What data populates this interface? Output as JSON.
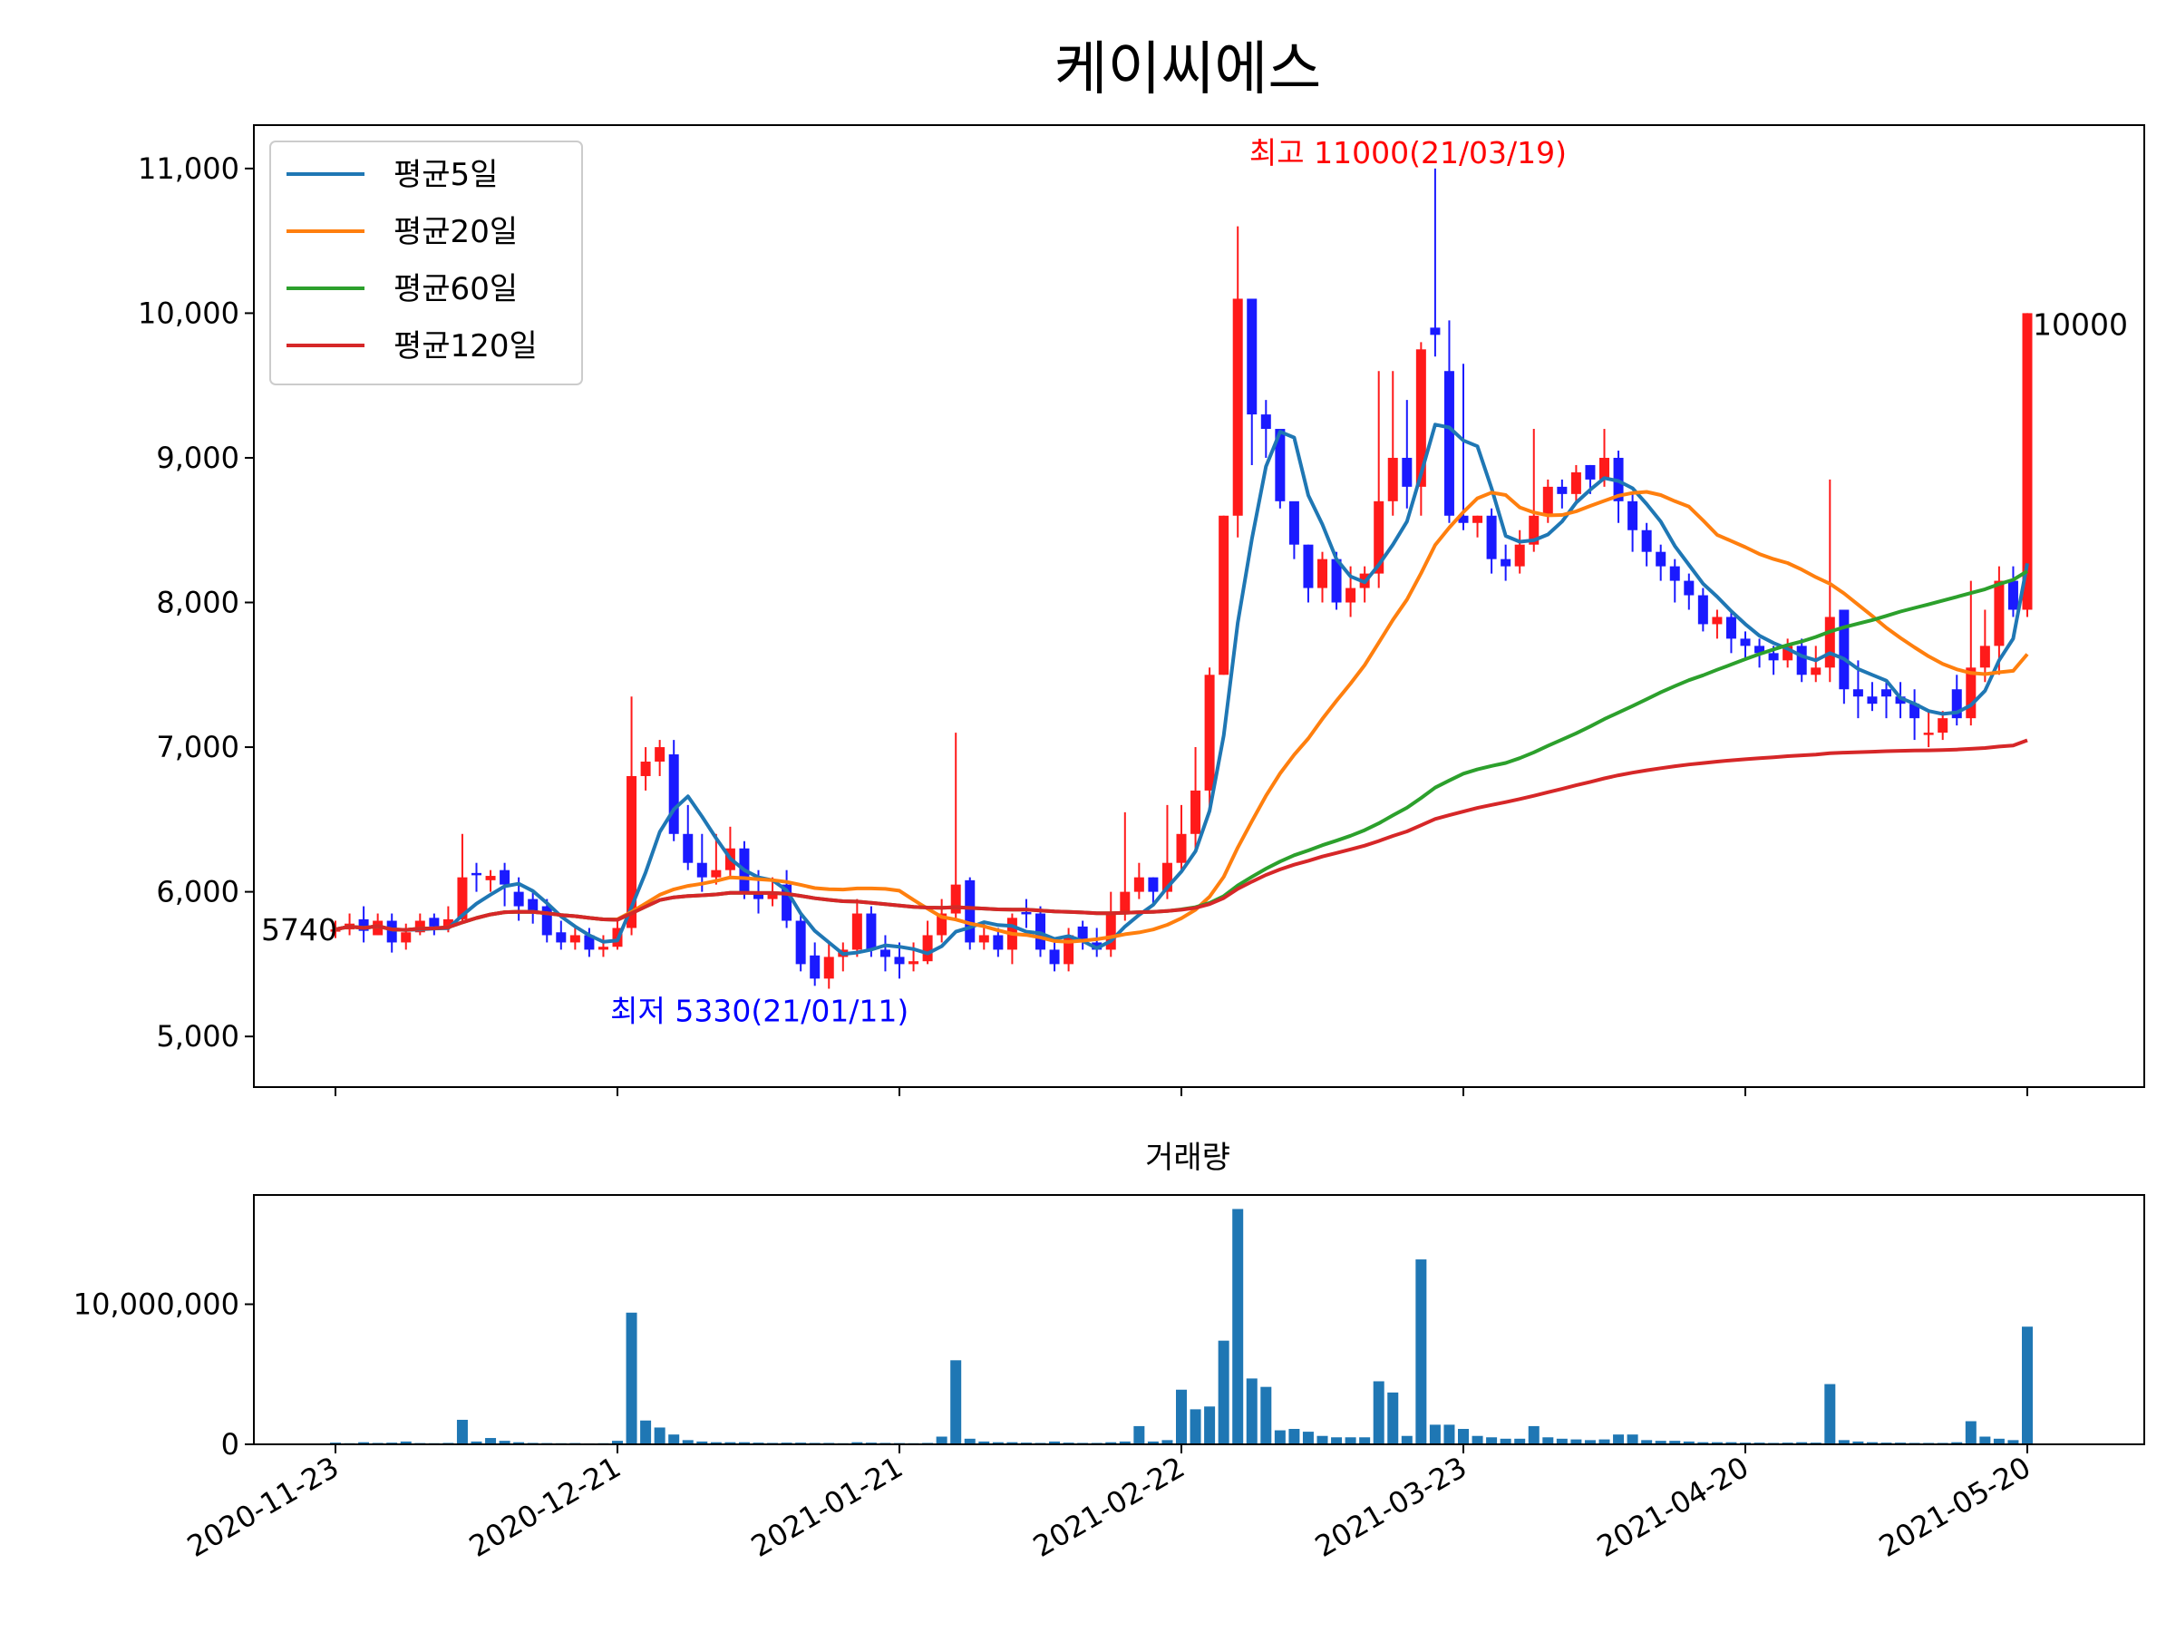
{
  "chart_data": {
    "type": "candlestick",
    "title": "케이씨에스",
    "price_axis": {
      "ylim": [
        4650,
        11300
      ],
      "ticks": [
        5000,
        6000,
        7000,
        8000,
        9000,
        10000,
        11000
      ],
      "tick_labels": [
        "5,000",
        "6,000",
        "7,000",
        "8,000",
        "9,000",
        "10,000",
        "11,000"
      ]
    },
    "volume_axis": {
      "title": "거래량",
      "ylim": [
        0,
        17800000
      ],
      "ticks": [
        0,
        10000000
      ],
      "tick_labels": [
        "0",
        "10,000,000"
      ]
    },
    "x_tick_labels": [
      "2020-11-23",
      "2020-12-21",
      "2021-01-21",
      "2021-02-22",
      "2021-03-23",
      "2021-04-20",
      "2021-05-20"
    ],
    "x_tick_index": [
      0,
      20,
      40,
      60,
      80,
      100,
      120
    ],
    "colors": {
      "up": "#ff1a1a",
      "down": "#1a1aff",
      "volume": "#1f77b4"
    },
    "legend": {
      "placement": "upper-left",
      "entries": [
        {
          "name": "평균5일",
          "color": "#1f77b4"
        },
        {
          "name": "평균20일",
          "color": "#ff7f0e"
        },
        {
          "name": "평균60일",
          "color": "#2ca02c"
        },
        {
          "name": "평균120일",
          "color": "#d62728"
        }
      ]
    },
    "annotations": {
      "high": {
        "text": "최고 11000(21/03/19)",
        "index": 78,
        "value": 11000,
        "color": "#ff0000"
      },
      "low": {
        "text": "최저 5330(21/01/11)",
        "index": 33,
        "value": 5330,
        "color": "#0000ff"
      },
      "first": {
        "text": "5740",
        "value": 5740
      },
      "last": {
        "text": "10000",
        "value": 10000
      }
    },
    "closes": [
      5740,
      5780,
      5730,
      5800,
      5650,
      5720,
      5800,
      5760,
      5810,
      6100,
      6120,
      6110,
      6050,
      5900,
      5850,
      5700,
      5650,
      5700,
      5600,
      5620,
      5750,
      6800,
      6900,
      7000,
      6400,
      6200,
      6100,
      6150,
      6300,
      6000,
      5950,
      6000,
      5800,
      5500,
      5400,
      5550,
      5600,
      5850,
      5600,
      5550,
      5500,
      5520,
      5700,
      5850,
      6050,
      5650,
      5700,
      5600,
      5820,
      5850,
      5600,
      5500,
      5700,
      5650,
      5600,
      5850,
      6000,
      6100,
      6000,
      6200,
      6400,
      6700,
      7500,
      8600,
      10100,
      9300,
      9200,
      8700,
      8400,
      8100,
      8300,
      8000,
      8100,
      8200,
      8700,
      9000,
      8800,
      9750,
      9900,
      8600,
      8550,
      8600,
      8300,
      8250,
      8400,
      8600,
      8800,
      8750,
      8900,
      8850,
      9000,
      8700,
      8500,
      8350,
      8250,
      8150,
      8050,
      7850,
      7900,
      7750,
      7700,
      7650,
      7600,
      7700,
      7500,
      7550,
      7900,
      7400,
      7350,
      7300,
      7350,
      7300,
      7200,
      7100,
      7200,
      7400,
      7550,
      7700,
      8150,
      7950,
      10000
    ],
    "bodies": [
      [
        5730,
        5740
      ],
      [
        5740,
        5780
      ],
      [
        5810,
        5730
      ],
      [
        5700,
        5800
      ],
      [
        5800,
        5650
      ],
      [
        5650,
        5720
      ],
      [
        5720,
        5800
      ],
      [
        5820,
        5760
      ],
      [
        5760,
        5810
      ],
      [
        5810,
        6100
      ],
      [
        6130,
        6120
      ],
      [
        6080,
        6110
      ],
      [
        6150,
        6050
      ],
      [
        6000,
        5900
      ],
      [
        5950,
        5850
      ],
      [
        5900,
        5700
      ],
      [
        5720,
        5650
      ],
      [
        5650,
        5700
      ],
      [
        5700,
        5600
      ],
      [
        5600,
        5620
      ],
      [
        5620,
        5750
      ],
      [
        5750,
        6800
      ],
      [
        6800,
        6900
      ],
      [
        6900,
        7000
      ],
      [
        6950,
        6400
      ],
      [
        6400,
        6200
      ],
      [
        6200,
        6100
      ],
      [
        6100,
        6150
      ],
      [
        6150,
        6300
      ],
      [
        6300,
        6000
      ],
      [
        6000,
        5950
      ],
      [
        5950,
        6000
      ],
      [
        6050,
        5800
      ],
      [
        5800,
        5500
      ],
      [
        5560,
        5400
      ],
      [
        5400,
        5550
      ],
      [
        5550,
        5600
      ],
      [
        5600,
        5850
      ],
      [
        5850,
        5600
      ],
      [
        5600,
        5550
      ],
      [
        5550,
        5500
      ],
      [
        5500,
        5520
      ],
      [
        5520,
        5700
      ],
      [
        5700,
        5850
      ],
      [
        5850,
        6050
      ],
      [
        6080,
        5650
      ],
      [
        5650,
        5700
      ],
      [
        5700,
        5600
      ],
      [
        5600,
        5820
      ],
      [
        5860,
        5850
      ],
      [
        5850,
        5600
      ],
      [
        5600,
        5500
      ],
      [
        5500,
        5700
      ],
      [
        5760,
        5650
      ],
      [
        5650,
        5600
      ],
      [
        5600,
        5850
      ],
      [
        5850,
        6000
      ],
      [
        6000,
        6100
      ],
      [
        6100,
        6000
      ],
      [
        6000,
        6200
      ],
      [
        6200,
        6400
      ],
      [
        6400,
        6700
      ],
      [
        6700,
        7500
      ],
      [
        7500,
        8600
      ],
      [
        8600,
        10100
      ],
      [
        10100,
        9300
      ],
      [
        9300,
        9200
      ],
      [
        9200,
        8700
      ],
      [
        8700,
        8400
      ],
      [
        8400,
        8100
      ],
      [
        8100,
        8300
      ],
      [
        8300,
        8000
      ],
      [
        8000,
        8100
      ],
      [
        8100,
        8200
      ],
      [
        8200,
        8700
      ],
      [
        8700,
        9000
      ],
      [
        9000,
        8800
      ],
      [
        8800,
        9750
      ],
      [
        9900,
        9850
      ],
      [
        9600,
        8600
      ],
      [
        8600,
        8550
      ],
      [
        8550,
        8600
      ],
      [
        8600,
        8300
      ],
      [
        8300,
        8250
      ],
      [
        8250,
        8400
      ],
      [
        8400,
        8600
      ],
      [
        8600,
        8800
      ],
      [
        8800,
        8750
      ],
      [
        8750,
        8900
      ],
      [
        8950,
        8850
      ],
      [
        8850,
        9000
      ],
      [
        9000,
        8700
      ],
      [
        8700,
        8500
      ],
      [
        8500,
        8350
      ],
      [
        8350,
        8250
      ],
      [
        8250,
        8150
      ],
      [
        8150,
        8050
      ],
      [
        8050,
        7850
      ],
      [
        7850,
        7900
      ],
      [
        7900,
        7750
      ],
      [
        7750,
        7700
      ],
      [
        7700,
        7650
      ],
      [
        7650,
        7600
      ],
      [
        7600,
        7700
      ],
      [
        7700,
        7500
      ],
      [
        7500,
        7550
      ],
      [
        7550,
        7900
      ],
      [
        7950,
        7400
      ],
      [
        7400,
        7350
      ],
      [
        7350,
        7300
      ],
      [
        7400,
        7350
      ],
      [
        7350,
        7300
      ],
      [
        7300,
        7200
      ],
      [
        7100,
        7100
      ],
      [
        7100,
        7200
      ],
      [
        7400,
        7200
      ],
      [
        7200,
        7550
      ],
      [
        7550,
        7700
      ],
      [
        7700,
        8150
      ],
      [
        8150,
        7950
      ],
      [
        7950,
        10000
      ]
    ],
    "wick_high": [
      5800,
      5850,
      5900,
      5850,
      5850,
      5780,
      5850,
      5850,
      5900,
      6400,
      6200,
      6150,
      6200,
      6100,
      6000,
      5950,
      5800,
      5750,
      5750,
      5700,
      5800,
      7350,
      7000,
      7050,
      7050,
      6600,
      6400,
      6400,
      6450,
      6350,
      6150,
      6100,
      6150,
      5850,
      5650,
      5650,
      5650,
      5950,
      5900,
      5700,
      5650,
      5650,
      5800,
      5950,
      7100,
      6100,
      5800,
      5750,
      5850,
      5950,
      5900,
      5650,
      5750,
      5800,
      5750,
      6000,
      6550,
      6200,
      6100,
      6600,
      6600,
      7000,
      7550,
      8600,
      10600,
      9750,
      9400,
      8850,
      8600,
      8400,
      8350,
      8350,
      8250,
      8250,
      9600,
      9600,
      9400,
      9800,
      11000,
      9950,
      9650,
      8600,
      8650,
      8400,
      8500,
      9200,
      8850,
      8850,
      8950,
      8950,
      9200,
      9050,
      8750,
      8550,
      8400,
      8300,
      8200,
      8100,
      7950,
      7950,
      7800,
      7750,
      7700,
      7750,
      7750,
      7700,
      8850,
      7950,
      7600,
      7450,
      7450,
      7450,
      7400,
      7250,
      7250,
      7500,
      8150,
      7950,
      8250,
      8250,
      10000
    ],
    "wick_low": [
      5680,
      5700,
      5650,
      5700,
      5580,
      5600,
      5700,
      5700,
      5720,
      5800,
      6000,
      6000,
      5900,
      5800,
      5780,
      5650,
      5600,
      5600,
      5550,
      5550,
      5600,
      5700,
      6700,
      6800,
      6350,
      6150,
      6000,
      6050,
      6100,
      5950,
      5850,
      5900,
      5750,
      5450,
      5350,
      5330,
      5450,
      5550,
      5550,
      5450,
      5400,
      5450,
      5500,
      5650,
      5800,
      5600,
      5600,
      5550,
      5500,
      5750,
      5550,
      5450,
      5450,
      5600,
      5550,
      5550,
      5800,
      5950,
      5900,
      5950,
      6150,
      6300,
      6550,
      7500,
      8450,
      8950,
      9000,
      8650,
      8300,
      8000,
      8000,
      7950,
      7900,
      8000,
      8100,
      8600,
      8650,
      8600,
      9700,
      8550,
      8500,
      8450,
      8200,
      8150,
      8200,
      8350,
      8550,
      8650,
      8700,
      8750,
      8800,
      8550,
      8350,
      8250,
      8150,
      8000,
      7950,
      7800,
      7750,
      7650,
      7600,
      7550,
      7500,
      7550,
      7450,
      7450,
      7450,
      7300,
      7200,
      7250,
      7200,
      7200,
      7050,
      7000,
      7050,
      7150,
      7150,
      7450,
      7500,
      7900,
      7900
    ],
    "volumes": [
      120000,
      80000,
      150000,
      100000,
      120000,
      200000,
      90000,
      80000,
      100000,
      1750000,
      200000,
      450000,
      250000,
      150000,
      100000,
      90000,
      80000,
      90000,
      70000,
      80000,
      250000,
      9400000,
      1700000,
      1200000,
      700000,
      300000,
      200000,
      150000,
      150000,
      150000,
      120000,
      100000,
      120000,
      120000,
      100000,
      100000,
      80000,
      150000,
      120000,
      100000,
      90000,
      80000,
      100000,
      550000,
      6000000,
      400000,
      200000,
      150000,
      150000,
      120000,
      100000,
      200000,
      120000,
      100000,
      100000,
      150000,
      200000,
      1300000,
      200000,
      300000,
      3900000,
      2500000,
      2700000,
      7400000,
      16800000,
      4700000,
      4100000,
      1000000,
      1100000,
      900000,
      600000,
      500000,
      500000,
      500000,
      4500000,
      3700000,
      600000,
      13200000,
      1400000,
      1400000,
      1100000,
      600000,
      500000,
      400000,
      400000,
      1300000,
      500000,
      400000,
      350000,
      300000,
      350000,
      700000,
      700000,
      300000,
      250000,
      250000,
      200000,
      150000,
      150000,
      150000,
      120000,
      120000,
      100000,
      120000,
      150000,
      120000,
      4300000,
      300000,
      200000,
      150000,
      120000,
      120000,
      100000,
      100000,
      100000,
      150000,
      1650000,
      550000,
      400000,
      300000,
      8400000
    ]
  }
}
